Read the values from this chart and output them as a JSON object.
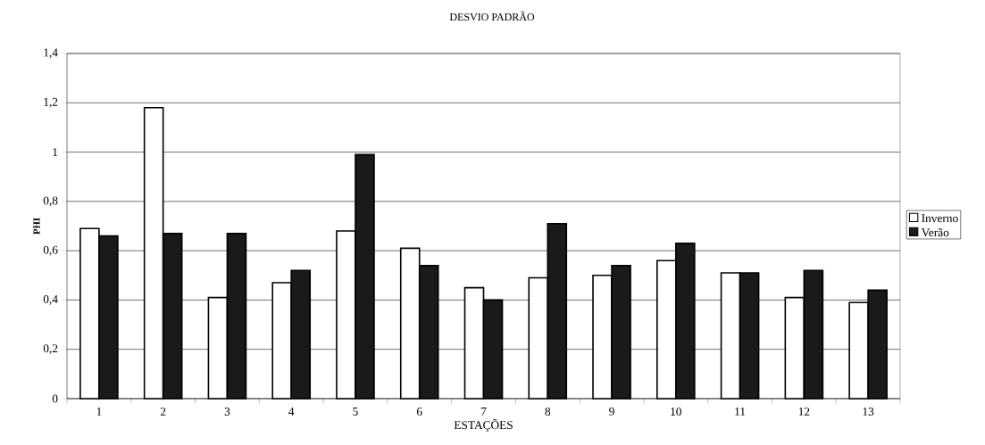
{
  "chart_data": {
    "type": "bar",
    "title": "DESVIO PADRÃO",
    "xlabel": "ESTAÇÕES",
    "ylabel": "PHI",
    "categories": [
      "1",
      "2",
      "3",
      "4",
      "5",
      "6",
      "7",
      "8",
      "9",
      "10",
      "11",
      "12",
      "13"
    ],
    "series": [
      {
        "name": "Inverno",
        "color": "#ffffff",
        "values": [
          0.69,
          1.18,
          0.41,
          0.47,
          0.68,
          0.61,
          0.45,
          0.49,
          0.5,
          0.56,
          0.51,
          0.41,
          0.39
        ]
      },
      {
        "name": "Verão",
        "color": "#1a1a1a",
        "values": [
          0.66,
          0.67,
          0.67,
          0.52,
          0.99,
          0.54,
          0.4,
          0.71,
          0.54,
          0.63,
          0.51,
          0.52,
          0.44
        ]
      }
    ],
    "ylim": [
      0,
      1.4
    ],
    "yticks": [
      0,
      {
        "value": 0.2,
        "label": "0,2"
      },
      {
        "value": 0.4,
        "label": "0,4"
      },
      {
        "value": 0.6,
        "label": "0,6"
      },
      {
        "value": 0.8,
        "label": "0,8"
      },
      1,
      {
        "value": 1.2,
        "label": "1,2"
      },
      {
        "value": 1.4,
        "label": "1,4"
      }
    ],
    "grid": "y",
    "legend": "right"
  }
}
